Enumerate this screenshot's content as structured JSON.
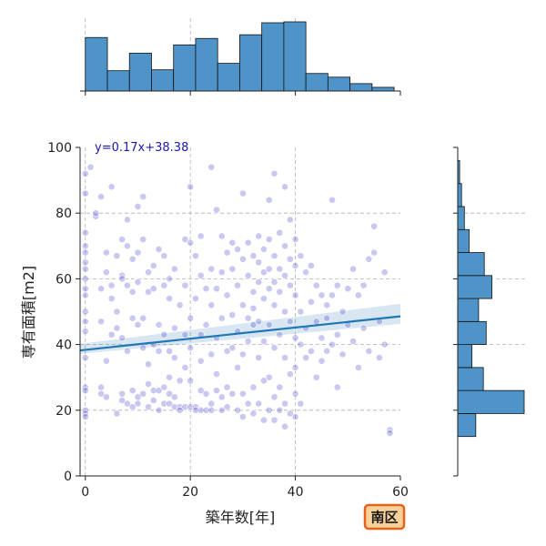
{
  "chart_data": {
    "type": "scatter",
    "title": "",
    "xlabel": "築年数[年]",
    "ylabel": "専有面積[m2]",
    "xlim": [
      -1,
      60
    ],
    "ylim": [
      0,
      100
    ],
    "xticks": [
      0,
      20,
      40,
      60
    ],
    "yticks": [
      0,
      20,
      40,
      60,
      80,
      100
    ],
    "grid": true,
    "regression": {
      "label": "y=0.17x+38.38",
      "slope": 0.17,
      "intercept": 38.38,
      "x_range": [
        -1,
        60
      ],
      "ci_start": [
        37.2,
        40.2
      ],
      "ci_end": [
        46.3,
        52.4
      ]
    },
    "badge": "南区",
    "marginal_x": {
      "type": "histogram",
      "bin_start": 0,
      "bin_width": 4.2,
      "counts": [
        58,
        22,
        41,
        23,
        50,
        57,
        30,
        61,
        74,
        75,
        19,
        15,
        8,
        4
      ]
    },
    "marginal_y": {
      "type": "histogram",
      "bin_start": 12,
      "bin_width": 7,
      "counts": [
        19,
        70,
        27,
        15,
        30,
        22,
        36,
        28,
        12,
        7,
        4,
        2
      ]
    },
    "points": [
      [
        0,
        92
      ],
      [
        0,
        86
      ],
      [
        0,
        74
      ],
      [
        0,
        70
      ],
      [
        0,
        68
      ],
      [
        0,
        65
      ],
      [
        0,
        63
      ],
      [
        0,
        60
      ],
      [
        0,
        57
      ],
      [
        0,
        55
      ],
      [
        0,
        50
      ],
      [
        0,
        47
      ],
      [
        0,
        44
      ],
      [
        0,
        36
      ],
      [
        0,
        27
      ],
      [
        0,
        26
      ],
      [
        0,
        20
      ],
      [
        0,
        19
      ],
      [
        0,
        18
      ],
      [
        1,
        94
      ],
      [
        2,
        79
      ],
      [
        2,
        80
      ],
      [
        3,
        85
      ],
      [
        3,
        57
      ],
      [
        3,
        47
      ],
      [
        3,
        27
      ],
      [
        3,
        25
      ],
      [
        4,
        68
      ],
      [
        4,
        62
      ],
      [
        4,
        35
      ],
      [
        4,
        24
      ],
      [
        5,
        88
      ],
      [
        5,
        58
      ],
      [
        5,
        54
      ],
      [
        5,
        43
      ],
      [
        6,
        67
      ],
      [
        6,
        50
      ],
      [
        6,
        45
      ],
      [
        6,
        19
      ],
      [
        7,
        72
      ],
      [
        7,
        61
      ],
      [
        7,
        60
      ],
      [
        7,
        42
      ],
      [
        7,
        25
      ],
      [
        7,
        23
      ],
      [
        8,
        78
      ],
      [
        8,
        70
      ],
      [
        8,
        58
      ],
      [
        8,
        38
      ],
      [
        8,
        22
      ],
      [
        9,
        66
      ],
      [
        9,
        56
      ],
      [
        9,
        48
      ],
      [
        9,
        26
      ],
      [
        9,
        21
      ],
      [
        10,
        82
      ],
      [
        10,
        68
      ],
      [
        10,
        59
      ],
      [
        10,
        46
      ],
      [
        10,
        24
      ],
      [
        10,
        22
      ],
      [
        11,
        85
      ],
      [
        11,
        72
      ],
      [
        11,
        48
      ],
      [
        11,
        39
      ],
      [
        11,
        25
      ],
      [
        12,
        62
      ],
      [
        12,
        56
      ],
      [
        12,
        34
      ],
      [
        12,
        28
      ],
      [
        12,
        21
      ],
      [
        13,
        64
      ],
      [
        13,
        57
      ],
      [
        13,
        40
      ],
      [
        13,
        26
      ],
      [
        13,
        23
      ],
      [
        14,
        69
      ],
      [
        14,
        46
      ],
      [
        14,
        38
      ],
      [
        14,
        26
      ],
      [
        14,
        20
      ],
      [
        15,
        67
      ],
      [
        15,
        58
      ],
      [
        15,
        43
      ],
      [
        15,
        27
      ],
      [
        15,
        22
      ],
      [
        16,
        60
      ],
      [
        16,
        54
      ],
      [
        16,
        38
      ],
      [
        16,
        30
      ],
      [
        16,
        25
      ],
      [
        16,
        22
      ],
      [
        17,
        63
      ],
      [
        17,
        45
      ],
      [
        17,
        36
      ],
      [
        17,
        24
      ],
      [
        17,
        21
      ],
      [
        18,
        52
      ],
      [
        18,
        29
      ],
      [
        18,
        21
      ],
      [
        18,
        20
      ],
      [
        19,
        72
      ],
      [
        19,
        58
      ],
      [
        19,
        43
      ],
      [
        19,
        33
      ],
      [
        19,
        21
      ],
      [
        20,
        88
      ],
      [
        20,
        71
      ],
      [
        20,
        48
      ],
      [
        20,
        39
      ],
      [
        20,
        29
      ],
      [
        20,
        21
      ],
      [
        21,
        67
      ],
      [
        21,
        54
      ],
      [
        21,
        21
      ],
      [
        21,
        20
      ],
      [
        22,
        73
      ],
      [
        22,
        61
      ],
      [
        22,
        43
      ],
      [
        22,
        35
      ],
      [
        22,
        26
      ],
      [
        22,
        20
      ],
      [
        23,
        57
      ],
      [
        23,
        46
      ],
      [
        23,
        25
      ],
      [
        23,
        20
      ],
      [
        24,
        94
      ],
      [
        24,
        63
      ],
      [
        24,
        52
      ],
      [
        24,
        37
      ],
      [
        24,
        22
      ],
      [
        24,
        20
      ],
      [
        25,
        81
      ],
      [
        25,
        57
      ],
      [
        25,
        42
      ],
      [
        25,
        31
      ],
      [
        25,
        26
      ],
      [
        26,
        73
      ],
      [
        26,
        62
      ],
      [
        26,
        48
      ],
      [
        26,
        24
      ],
      [
        26,
        20
      ],
      [
        27,
        68
      ],
      [
        27,
        55
      ],
      [
        27,
        38
      ],
      [
        27,
        27
      ],
      [
        27,
        21
      ],
      [
        28,
        71
      ],
      [
        28,
        63
      ],
      [
        28,
        49
      ],
      [
        28,
        39
      ],
      [
        28,
        25
      ],
      [
        29,
        69
      ],
      [
        29,
        58
      ],
      [
        29,
        44
      ],
      [
        29,
        33
      ],
      [
        29,
        20
      ],
      [
        30,
        86
      ],
      [
        30,
        66
      ],
      [
        30,
        52
      ],
      [
        30,
        37
      ],
      [
        30,
        25
      ],
      [
        30,
        18
      ],
      [
        31,
        71
      ],
      [
        31,
        61
      ],
      [
        31,
        48
      ],
      [
        31,
        41
      ],
      [
        31,
        22
      ],
      [
        32,
        67
      ],
      [
        32,
        56
      ],
      [
        32,
        51
      ],
      [
        32,
        46
      ],
      [
        32,
        27
      ],
      [
        32,
        19
      ],
      [
        33,
        73
      ],
      [
        33,
        65
      ],
      [
        33,
        59
      ],
      [
        33,
        47
      ],
      [
        33,
        36
      ],
      [
        33,
        22
      ],
      [
        34,
        69
      ],
      [
        34,
        62
      ],
      [
        34,
        54
      ],
      [
        34,
        41
      ],
      [
        34,
        29
      ],
      [
        34,
        17
      ],
      [
        35,
        84
      ],
      [
        35,
        72
      ],
      [
        35,
        63
      ],
      [
        35,
        57
      ],
      [
        35,
        46
      ],
      [
        35,
        30
      ],
      [
        35,
        20
      ],
      [
        36,
        92
      ],
      [
        36,
        67
      ],
      [
        36,
        59
      ],
      [
        36,
        52
      ],
      [
        36,
        39
      ],
      [
        36,
        24
      ],
      [
        36,
        17
      ],
      [
        37,
        74
      ],
      [
        37,
        63
      ],
      [
        37,
        56
      ],
      [
        37,
        43
      ],
      [
        37,
        27
      ],
      [
        37,
        20
      ],
      [
        38,
        88
      ],
      [
        38,
        70
      ],
      [
        38,
        61
      ],
      [
        38,
        50
      ],
      [
        38,
        36
      ],
      [
        38,
        22
      ],
      [
        38,
        15
      ],
      [
        39,
        78
      ],
      [
        39,
        66
      ],
      [
        39,
        58
      ],
      [
        39,
        47
      ],
      [
        39,
        31
      ],
      [
        39,
        19
      ],
      [
        40,
        72
      ],
      [
        40,
        64
      ],
      [
        40,
        55
      ],
      [
        40,
        42
      ],
      [
        40,
        33
      ],
      [
        40,
        25
      ],
      [
        40,
        18
      ],
      [
        41,
        67
      ],
      [
        41,
        50
      ],
      [
        41,
        40
      ],
      [
        41,
        22
      ],
      [
        42,
        62
      ],
      [
        42,
        45
      ],
      [
        42,
        36
      ],
      [
        43,
        64
      ],
      [
        43,
        53
      ],
      [
        43,
        38
      ],
      [
        44,
        58
      ],
      [
        44,
        47
      ],
      [
        44,
        30
      ],
      [
        45,
        55
      ],
      [
        45,
        42
      ],
      [
        45,
        35
      ],
      [
        46,
        52
      ],
      [
        46,
        48
      ],
      [
        46,
        38
      ],
      [
        47,
        84
      ],
      [
        47,
        55
      ],
      [
        47,
        40
      ],
      [
        48,
        58
      ],
      [
        48,
        43
      ],
      [
        48,
        27
      ],
      [
        49,
        50
      ],
      [
        49,
        37
      ],
      [
        50,
        57
      ],
      [
        50,
        46
      ],
      [
        51,
        63
      ],
      [
        51,
        41
      ],
      [
        52,
        55
      ],
      [
        52,
        33
      ],
      [
        53,
        58
      ],
      [
        53,
        45
      ],
      [
        54,
        66
      ],
      [
        54,
        38
      ],
      [
        55,
        68
      ],
      [
        55,
        76
      ],
      [
        56,
        47
      ],
      [
        56,
        36
      ],
      [
        57,
        62
      ],
      [
        57,
        40
      ],
      [
        58,
        14
      ],
      [
        58,
        13
      ]
    ]
  }
}
